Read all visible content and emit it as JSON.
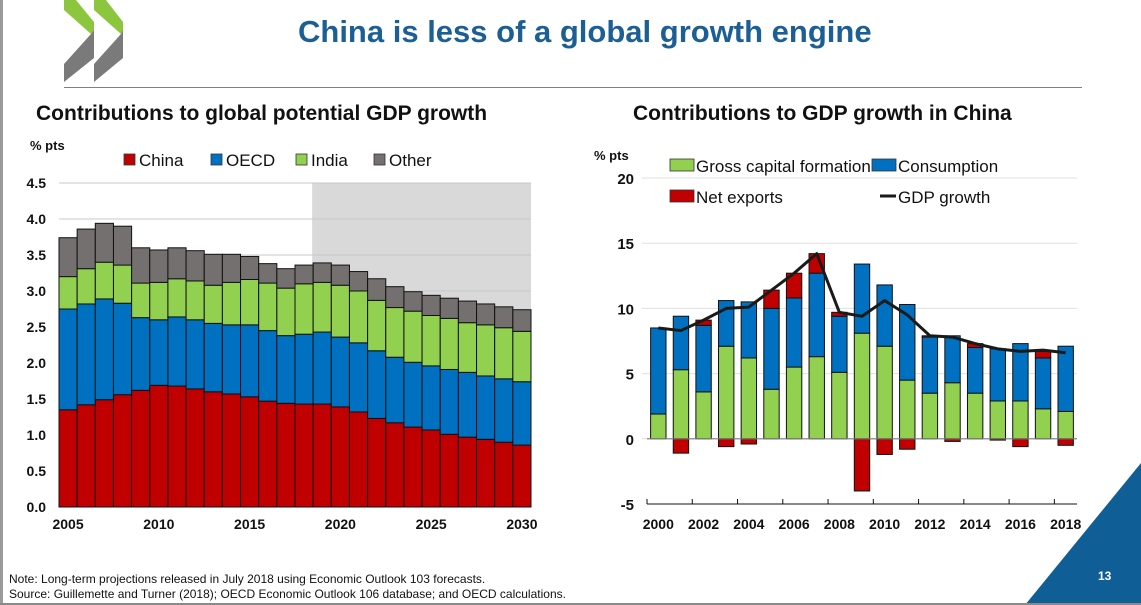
{
  "slide": {
    "title": "China is less of a global growth engine",
    "page_number": "13",
    "note": "Note: Long-term projections released in July 2018 using Economic Outlook 103 forecasts.",
    "source": "Source: Guillemette and Turner (2018); OECD Economic Outlook 106 database; and OECD calculations.",
    "colors": {
      "title": "#1c5f95",
      "corner": "#0f5f96",
      "logo_green": "#8cc63f",
      "logo_grey": "#7a7a7a"
    }
  },
  "chart_data": [
    {
      "type": "bar",
      "stacked": true,
      "title": "Contributions to global potential GDP growth",
      "ylabel": "% pts",
      "xlabel": "",
      "ylim": [
        0,
        4.5
      ],
      "yticks": [
        "0.0",
        "0.5",
        "1.0",
        "1.5",
        "2.0",
        "2.5",
        "3.0",
        "3.5",
        "4.0",
        "4.5"
      ],
      "xticks": [
        "2005",
        "2010",
        "2015",
        "2020",
        "2025",
        "2030"
      ],
      "grid": true,
      "legend_position": "top",
      "shaded_region": {
        "from": "2019",
        "to": "2030",
        "meaning": "projection"
      },
      "categories": [
        "2005",
        "2006",
        "2007",
        "2008",
        "2009",
        "2010",
        "2011",
        "2012",
        "2013",
        "2014",
        "2015",
        "2016",
        "2017",
        "2018",
        "2019",
        "2020",
        "2021",
        "2022",
        "2023",
        "2024",
        "2025",
        "2026",
        "2027",
        "2028",
        "2029",
        "2030"
      ],
      "series": [
        {
          "name": "China",
          "color": "#c00000",
          "values": [
            1.35,
            1.42,
            1.49,
            1.56,
            1.62,
            1.69,
            1.68,
            1.64,
            1.6,
            1.57,
            1.53,
            1.47,
            1.44,
            1.43,
            1.43,
            1.39,
            1.32,
            1.23,
            1.17,
            1.11,
            1.07,
            1.01,
            0.97,
            0.94,
            0.9,
            0.86
          ]
        },
        {
          "name": "OECD",
          "color": "#0070c0",
          "values": [
            1.4,
            1.4,
            1.4,
            1.27,
            1.01,
            0.91,
            0.96,
            0.96,
            0.95,
            0.96,
            1.0,
            0.98,
            0.94,
            0.97,
            1.0,
            0.97,
            0.96,
            0.94,
            0.91,
            0.9,
            0.89,
            0.9,
            0.9,
            0.88,
            0.88,
            0.88
          ]
        },
        {
          "name": "India",
          "color": "#92d050",
          "values": [
            0.45,
            0.49,
            0.51,
            0.53,
            0.48,
            0.52,
            0.53,
            0.54,
            0.53,
            0.59,
            0.63,
            0.66,
            0.66,
            0.7,
            0.69,
            0.72,
            0.72,
            0.7,
            0.69,
            0.71,
            0.7,
            0.71,
            0.69,
            0.71,
            0.71,
            0.7
          ]
        },
        {
          "name": "Other",
          "color": "#747070",
          "values": [
            0.54,
            0.55,
            0.54,
            0.54,
            0.49,
            0.45,
            0.43,
            0.42,
            0.43,
            0.39,
            0.32,
            0.27,
            0.27,
            0.26,
            0.27,
            0.28,
            0.27,
            0.3,
            0.29,
            0.27,
            0.28,
            0.28,
            0.3,
            0.29,
            0.29,
            0.3
          ]
        }
      ]
    },
    {
      "type": "bar",
      "stacked": true,
      "title": "Contributions to GDP growth in China",
      "ylabel": "% pts",
      "xlabel": "",
      "ylim": [
        -5,
        20
      ],
      "yticks": [
        "-5",
        "0",
        "5",
        "10",
        "15",
        "20"
      ],
      "xticks": [
        "2000",
        "2002",
        "2004",
        "2006",
        "2008",
        "2010",
        "2012",
        "2014",
        "2016",
        "2018"
      ],
      "grid": true,
      "legend_position": "top",
      "categories": [
        "2000",
        "2001",
        "2002",
        "2003",
        "2004",
        "2005",
        "2006",
        "2007",
        "2008",
        "2009",
        "2010",
        "2011",
        "2012",
        "2013",
        "2014",
        "2015",
        "2016",
        "2017",
        "2018"
      ],
      "series": [
        {
          "name": "Gross capital formation",
          "color": "#92d050",
          "values": [
            1.9,
            5.3,
            3.6,
            7.1,
            6.2,
            3.8,
            5.5,
            6.3,
            5.1,
            8.1,
            7.1,
            4.5,
            3.5,
            4.3,
            3.5,
            2.9,
            2.9,
            2.3,
            2.1
          ]
        },
        {
          "name": "Consumption",
          "color": "#0070c0",
          "values": [
            6.6,
            4.1,
            5.1,
            3.5,
            4.3,
            6.2,
            5.3,
            6.4,
            4.3,
            5.3,
            4.7,
            5.8,
            4.3,
            3.6,
            3.5,
            4.0,
            4.4,
            3.9,
            5.0
          ]
        },
        {
          "name": "Net exports",
          "color": "#c00000",
          "values": [
            0.0,
            -1.1,
            0.4,
            -0.6,
            -0.4,
            1.4,
            1.9,
            1.5,
            0.3,
            -4.0,
            -1.2,
            -0.8,
            0.1,
            -0.2,
            0.3,
            -0.1,
            -0.6,
            0.5,
            -0.5
          ]
        }
      ],
      "line_series": {
        "name": "GDP growth",
        "color": "#1a1a1a",
        "values": [
          8.5,
          8.3,
          9.1,
          10.0,
          10.1,
          11.4,
          12.7,
          14.2,
          9.7,
          9.4,
          10.6,
          9.5,
          7.9,
          7.8,
          7.3,
          6.9,
          6.7,
          6.8,
          6.6
        ]
      }
    }
  ]
}
